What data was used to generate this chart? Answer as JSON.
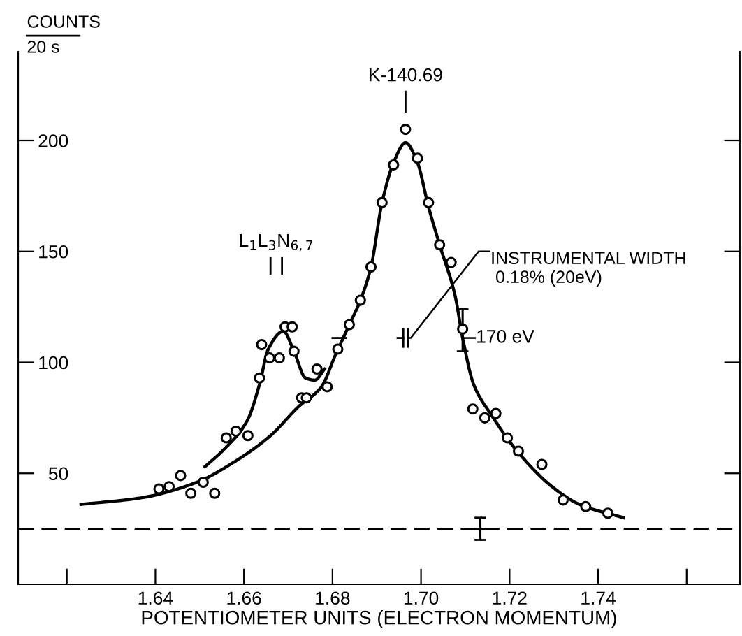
{
  "chart_data": {
    "type": "scatter",
    "ylabel": "COUNTS\n20 s",
    "xlabel": "POTENTIOMETER UNITS (ELECTRON MOMENTUM)",
    "xlim": [
      1.609,
      1.772
    ],
    "ylim": [
      0,
      240
    ],
    "xticks": [
      {
        "value": 1.62,
        "label": null
      },
      1.64,
      1.66,
      1.68,
      {
        "value": 1.7,
        "label": "1.70"
      },
      1.72,
      1.74,
      {
        "value": 1.76,
        "label": null
      }
    ],
    "yticks": [
      50,
      100,
      150,
      200
    ],
    "grid": false,
    "series": [
      {
        "marker": "circle",
        "color": "#000000",
        "x": [
          1.6408,
          1.6431,
          1.6457,
          1.648,
          1.6508,
          1.6534,
          1.656,
          1.6582,
          1.6609,
          1.6635,
          1.664,
          1.6658,
          1.668,
          1.6693,
          1.6709,
          1.6713,
          1.673,
          1.6741,
          1.6765,
          1.6788,
          1.6812,
          1.6838,
          1.6863,
          1.6887,
          1.6912,
          1.6938,
          1.6965,
          1.6992,
          1.7017,
          1.7042,
          1.7068,
          1.7094,
          1.7117,
          1.7144,
          1.7169,
          1.7195,
          1.722,
          1.7273,
          1.7321,
          1.7372,
          1.7422
        ],
        "values": [
          43,
          44,
          49,
          41,
          46,
          41,
          66,
          69,
          67,
          93,
          108,
          102,
          102,
          116,
          116,
          105,
          84,
          84,
          97,
          89,
          106,
          117,
          128,
          143,
          172,
          189,
          205,
          192,
          172,
          153,
          145,
          115,
          79,
          75,
          77,
          66,
          60,
          54,
          38,
          35,
          32
        ],
        "errors": [
          null,
          null,
          null,
          null,
          null,
          null,
          null,
          null,
          null,
          null,
          null,
          null,
          null,
          null,
          null,
          null,
          null,
          null,
          null,
          null,
          null,
          null,
          null,
          null,
          null,
          null,
          null,
          null,
          null,
          null,
          null,
          [
            105,
            124
          ],
          null,
          null,
          null,
          null,
          null,
          null,
          null,
          null,
          null
        ]
      },
      {
        "type": "line",
        "marker": "none",
        "line_style": "solid",
        "color": "#000000",
        "x": [
          1.6232,
          1.6369,
          1.6494,
          1.6577,
          1.666,
          1.6723,
          1.6775,
          1.6806,
          1.6838,
          1.6863,
          1.6887,
          1.6912,
          1.6938,
          1.6965,
          1.6992,
          1.7017,
          1.7042,
          1.7077,
          1.7094,
          1.7119,
          1.716,
          1.7213,
          1.7296,
          1.7358,
          1.7457
        ],
        "values": [
          36,
          39,
          46,
          55,
          67,
          80,
          89,
          103,
          117,
          128,
          143,
          172,
          190,
          199,
          190,
          170,
          153,
          130,
          111,
          90,
          76,
          61,
          44,
          36,
          30
        ]
      },
      {
        "type": "line",
        "marker": "none",
        "line_style": "solid",
        "color": "#000000",
        "x": [
          1.6512,
          1.6556,
          1.6608,
          1.6635,
          1.6655,
          1.6689,
          1.6713,
          1.6739,
          1.676,
          1.6782
        ],
        "values": [
          53,
          61,
          74,
          90,
          106,
          114,
          105,
          93,
          92,
          97
        ]
      },
      {
        "marker": "cross",
        "color": "#000000",
        "x": [
          1.7134
        ],
        "values": [
          25
        ],
        "errors": [
          [
            20,
            30
          ]
        ]
      }
    ],
    "ref_lines": [
      {
        "axis": "y",
        "value": 25,
        "line_style": "dashed",
        "color": "#000000"
      }
    ],
    "annotations": [
      "K-140.69",
      "L$_{1}$L$_{3}$N$_{6,7}$",
      "INSTRUMENTAL WIDTH\n 0.18% (20eV)",
      {
        "text": "170 eV",
        "x": 1.7094,
        "y": 111
      }
    ]
  }
}
